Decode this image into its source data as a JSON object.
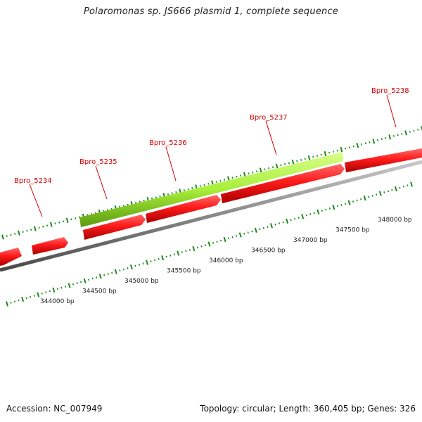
{
  "title": "Polaromonas sp. JS666 plasmid 1, complete sequence",
  "footer": {
    "accession": "Accession: NC_007949",
    "summary": "Topology: circular; Length: 360,405 bp; Genes: 326"
  },
  "colors": {
    "forward_gene": "#a8ee3a",
    "reverse_gene": "#ff1a1a",
    "backbone": "#8a8a8a",
    "ticks": "#1a8a1a",
    "label": "#d40000"
  },
  "genes": [
    {
      "name": "Bpro_5234",
      "labeled": true
    },
    {
      "name": "Bpro_5235",
      "labeled": true
    },
    {
      "name": "Bpro_5236",
      "labeled": true
    },
    {
      "name": "Bpro_5237",
      "labeled": true
    },
    {
      "name": "Bpro_5238",
      "labeled": true
    }
  ],
  "scale_labels": [
    "344000 bp",
    "344500 bp",
    "345000 bp",
    "345500 bp",
    "346000 bp",
    "346500 bp",
    "347000 bp",
    "347500 bp",
    "348000 bp"
  ]
}
